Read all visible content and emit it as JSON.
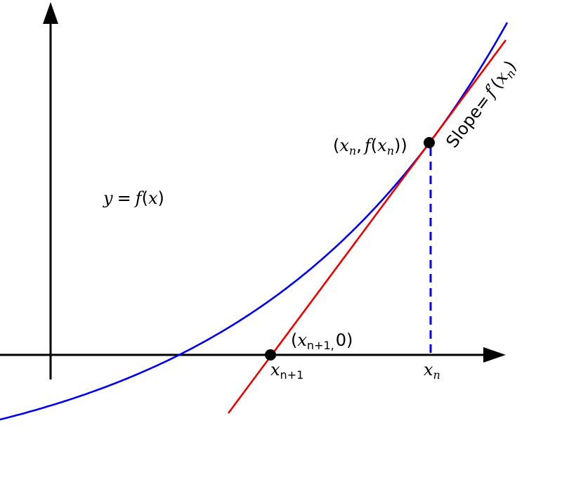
{
  "colors": {
    "axes": "#000000",
    "curve": "#0000ee",
    "tangent": "#ee0000",
    "points": "#000000",
    "background": "#ffffff"
  },
  "labels": {
    "curve_x": "x",
    "curve_y": "y",
    "curve_equals": "=",
    "curve_f": "f",
    "curve_paren_open": "(",
    "curve_paren_close": ")",
    "pt_open": "(",
    "pt_x": "x",
    "pt_x_sub": "n",
    "pt_comma": ",",
    "pt_f": "f",
    "pt_paren_open": "(",
    "pt_inner_x": "x",
    "pt_inner_sub": "n",
    "pt_close": "))",
    "slope_word": "Slope=",
    "slope_f": "f",
    "slope_prime": "′",
    "slope_paren_open": "(",
    "slope_x": "x",
    "slope_sub": "n",
    "slope_paren_close": ")",
    "root_open": "(",
    "root_x": "x",
    "root_sub": "n+1",
    "root_comma": ",",
    "root_zero": "0)",
    "tick_xn1": "x",
    "tick_xn1_sub": "n+1",
    "tick_xn": "x",
    "tick_xn_sub": "n"
  }
}
